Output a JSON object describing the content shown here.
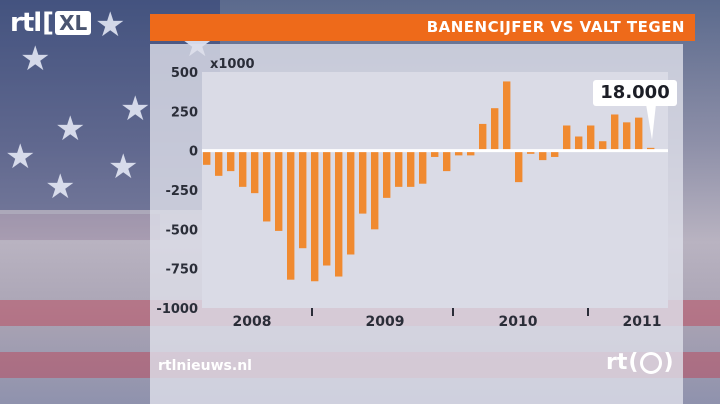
{
  "broadcast": {
    "logo_text": "rtl",
    "logo_xl": "XL",
    "headline": "BANENCIJFER VS VALT TEGEN",
    "website": "rtlnieuws.nl",
    "footer_logo_text": "rt"
  },
  "colors": {
    "accent": "#ee6a1a",
    "bar": "#f08a30",
    "panel": "#dedfea"
  },
  "callout": {
    "text": "18.000"
  },
  "chart_data": {
    "type": "bar",
    "unit_label": "x1000",
    "ylim": [
      -1000,
      500
    ],
    "yticks": [
      500,
      250,
      0,
      -250,
      -500,
      -750,
      -1000
    ],
    "ytick_labels": [
      "500",
      "250",
      "0",
      "-250",
      "-500",
      "-750",
      "-1000"
    ],
    "year_labels": [
      "2008",
      "2009",
      "2010",
      "2011"
    ],
    "values": [
      -90,
      -160,
      -130,
      -230,
      -270,
      -450,
      -510,
      -820,
      -620,
      -830,
      -730,
      -800,
      -660,
      -400,
      -500,
      -300,
      -230,
      -230,
      -210,
      -40,
      -130,
      -30,
      -30,
      170,
      270,
      440,
      -200,
      -20,
      -60,
      -40,
      160,
      90,
      160,
      60,
      230,
      180,
      210,
      18
    ],
    "grid": false,
    "legend": "none"
  }
}
